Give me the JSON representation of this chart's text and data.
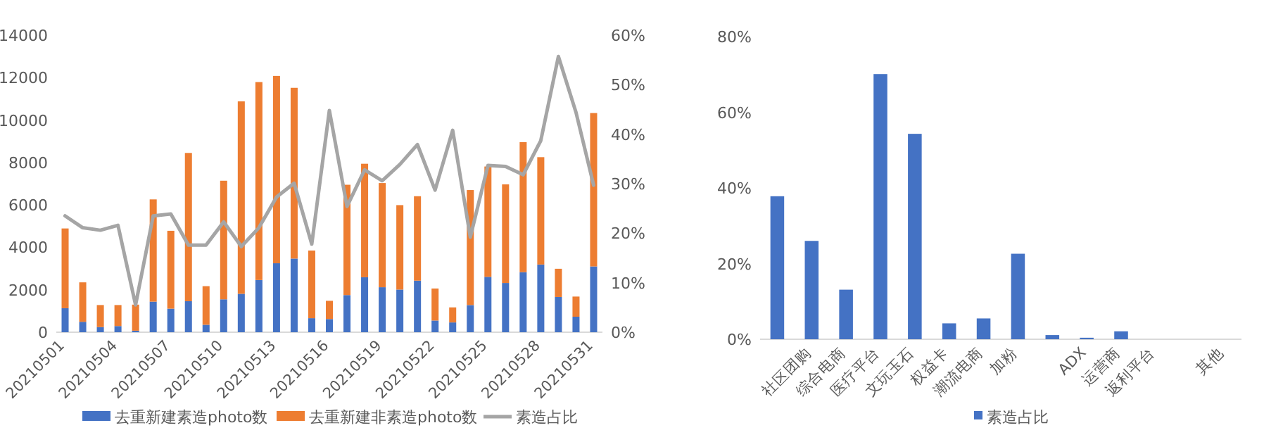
{
  "chart_data": [
    {
      "type": "bar",
      "stacked": true,
      "legend": "bottom",
      "categories": [
        "20210501",
        null,
        null,
        "20210504",
        null,
        null,
        "20210507",
        null,
        null,
        "20210510",
        null,
        null,
        "20210513",
        null,
        null,
        "20210516",
        null,
        null,
        "20210519",
        null,
        null,
        "20210522",
        null,
        null,
        "20210525",
        null,
        null,
        "20210528",
        null,
        null,
        "20210531"
      ],
      "series": [
        {
          "name": "去重新建素造photo数",
          "color": "#4472c4",
          "values": [
            1130,
            490,
            240,
            290,
            70,
            1440,
            1110,
            1460,
            350,
            1550,
            1810,
            2460,
            3250,
            3470,
            660,
            620,
            1750,
            2590,
            2120,
            2010,
            2430,
            550,
            460,
            1280,
            2610,
            2320,
            2830,
            3190,
            1660,
            730,
            3100
          ]
        },
        {
          "name": "去重新建非素造photo数",
          "color": "#ed7d31",
          "values": [
            3760,
            1860,
            1040,
            990,
            1230,
            4820,
            3670,
            6990,
            1820,
            5590,
            9070,
            9330,
            8830,
            8050,
            3190,
            860,
            5200,
            5350,
            4910,
            3980,
            3980,
            1510,
            710,
            5420,
            5200,
            4650,
            6130,
            5060,
            1330,
            950,
            7230
          ]
        },
        {
          "name": "素造占比",
          "color": "#a5a5a5",
          "type": "line",
          "axis": "y2",
          "values": [
            23.5,
            21.1,
            20.6,
            21.6,
            5.5,
            23.5,
            23.9,
            17.6,
            17.6,
            22.3,
            17.3,
            21.1,
            27.3,
            30.1,
            17.8,
            44.8,
            25.4,
            32.8,
            30.6,
            33.9,
            37.9,
            28.7,
            40.8,
            19.2,
            33.7,
            33.5,
            31.8,
            38.7,
            55.7,
            44.4,
            29.7
          ]
        }
      ],
      "ylim": [
        0,
        14000
      ],
      "yticks": [
        0,
        2000,
        4000,
        6000,
        8000,
        10000,
        12000,
        14000
      ],
      "y2lim": [
        0,
        60
      ],
      "y2ticks": [
        {
          "value": 0,
          "label": "0%"
        },
        {
          "value": 10,
          "label": "10%"
        },
        {
          "value": 20,
          "label": "20%"
        },
        {
          "value": 30,
          "label": "30%"
        },
        {
          "value": 40,
          "label": "40%"
        },
        {
          "value": 50,
          "label": "50%"
        },
        {
          "value": 60,
          "label": "60%"
        }
      ]
    },
    {
      "type": "bar",
      "legend": "bottom",
      "categories": [
        null,
        "社区团购",
        "综合电商",
        "医疗平台",
        "文玩玉石",
        "权益卡",
        "潮流电商",
        "加粉",
        null,
        "ADX",
        "运营商",
        "返利平台",
        null,
        "其他"
      ],
      "series": [
        {
          "name": "素造占比",
          "color": "#4472c4",
          "values": [
            37.8,
            26.0,
            13.1,
            70.1,
            54.3,
            4.2,
            5.5,
            22.6,
            1.1,
            0.4,
            2.1,
            0,
            0,
            0
          ]
        }
      ],
      "ylim": [
        0,
        80
      ],
      "yticks": [
        {
          "value": 0,
          "label": "0%"
        },
        {
          "value": 20,
          "label": "20%"
        },
        {
          "value": 40,
          "label": "40%"
        },
        {
          "value": 60,
          "label": "60%"
        },
        {
          "value": 80,
          "label": "80%"
        }
      ]
    }
  ]
}
